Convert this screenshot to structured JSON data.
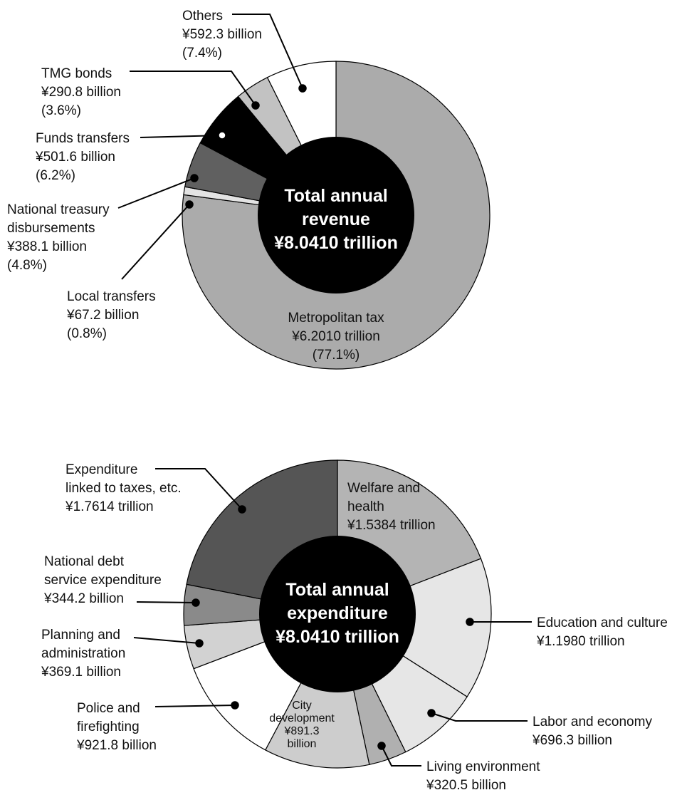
{
  "chart_data": [
    {
      "type": "pie",
      "center_text": [
        "Total annual",
        "revenue",
        "¥8.0410 trillion"
      ],
      "slices": [
        {
          "name": "Metropolitan tax",
          "value": 6201.0,
          "unit": "billion yen",
          "value_text": "¥6.2010 trillion",
          "percent_text": "(77.1%)",
          "color": "#ababab"
        },
        {
          "name": "Local transfers",
          "value": 67.2,
          "unit": "billion yen",
          "value_text": "¥67.2 billion",
          "percent_text": "(0.8%)",
          "color": "#e3e3e3"
        },
        {
          "name": "National treasury disbursements",
          "name_lines": [
            "National treasury",
            "disbursements"
          ],
          "value": 388.1,
          "unit": "billion yen",
          "value_text": "¥388.1 billion",
          "percent_text": "(4.8%)",
          "color": "#606060"
        },
        {
          "name": "Funds transfers",
          "value": 501.6,
          "unit": "billion yen",
          "value_text": "¥501.6 billion",
          "percent_text": "(6.2%)",
          "color": "#000000"
        },
        {
          "name": "TMG bonds",
          "value": 290.8,
          "unit": "billion yen",
          "value_text": "¥290.8 billion",
          "percent_text": "(3.6%)",
          "color": "#c2c2c2"
        },
        {
          "name": "Others",
          "value": 592.3,
          "unit": "billion yen",
          "value_text": "¥592.3 billion",
          "percent_text": "(7.4%)",
          "color": "#ffffff"
        }
      ]
    },
    {
      "type": "pie",
      "center_text": [
        "Total annual",
        "expenditure",
        "¥8.0410 trillion"
      ],
      "slices": [
        {
          "name": "Welfare and health",
          "name_lines": [
            "Welfare and",
            "health"
          ],
          "value": 1538.4,
          "unit": "billion yen",
          "value_text": "¥1.5384 trillion",
          "color": "#b4b4b4"
        },
        {
          "name": "Education and culture",
          "value": 1198.0,
          "unit": "billion yen",
          "value_text": "¥1.1980 trillion",
          "color": "#e6e6e6"
        },
        {
          "name": "Labor and economy",
          "value": 696.3,
          "unit": "billion yen",
          "value_text": "¥696.3 billion",
          "color": "#e6e6e6"
        },
        {
          "name": "Living environment",
          "value": 320.5,
          "unit": "billion yen",
          "value_text": "¥320.5 billion",
          "color": "#b0b0b0"
        },
        {
          "name": "City development",
          "name_lines": [
            "City",
            "development"
          ],
          "value": 891.3,
          "unit": "billion yen",
          "value_text": "¥891.3",
          "value_unit_text": "billion",
          "color": "#cdcdcd"
        },
        {
          "name": "Police and firefighting",
          "name_lines": [
            "Police and",
            "firefighting"
          ],
          "value": 921.8,
          "unit": "billion yen",
          "value_text": "¥921.8 billion",
          "color": "#ffffff"
        },
        {
          "name": "Planning and administration",
          "name_lines": [
            "Planning and",
            "administration"
          ],
          "value": 369.1,
          "unit": "billion yen",
          "value_text": "¥369.1 billion",
          "color": "#d2d2d2"
        },
        {
          "name": "National debt service expenditure",
          "name_lines": [
            "National debt",
            "service expenditure"
          ],
          "value": 344.2,
          "unit": "billion yen",
          "value_text": "¥344.2 billion",
          "color": "#8a8a8a"
        },
        {
          "name": "Expenditure linked to taxes, etc.",
          "name_lines": [
            "Expenditure",
            "linked to taxes, etc."
          ],
          "value": 1761.4,
          "unit": "billion yen",
          "value_text": "¥1.7614 trillion",
          "color": "#555555"
        }
      ]
    }
  ]
}
